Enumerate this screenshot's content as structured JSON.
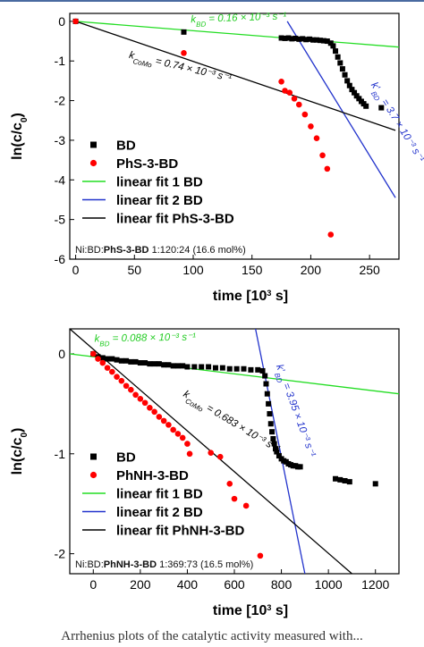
{
  "chart_data": [
    {
      "type": "scatter",
      "xlabel": "time [10³ s]",
      "ylabel": "ln(c/c₀)",
      "xlim": [
        -5,
        275
      ],
      "ylim": [
        -6,
        0.2
      ],
      "xticks": [
        0,
        50,
        100,
        150,
        200,
        250
      ],
      "yticks": [
        0,
        -1,
        -2,
        -3,
        -4,
        -5,
        -6
      ],
      "legend_position": "bottom-left",
      "legend": [
        {
          "label": "BD",
          "kind": "square",
          "color": "#000000"
        },
        {
          "label": "PhS-3-BD",
          "kind": "circle",
          "color": "#ff0000"
        },
        {
          "label": "linear fit 1 BD",
          "kind": "line",
          "color": "#22dd22"
        },
        {
          "label": "linear fit 2 BD",
          "kind": "line",
          "color": "#2233cc"
        },
        {
          "label": "linear fit PhS-3-BD",
          "kind": "line",
          "color": "#000000"
        }
      ],
      "footnote": {
        "prefix": "Ni:BD:",
        "bold": "PhS-3-BD",
        "suffix": " 1:120:24 (16.6 mol%)"
      },
      "series": [
        {
          "name": "BD",
          "marker": "square",
          "color": "#000000",
          "x": [
            0,
            92,
            175,
            178,
            181,
            184,
            187,
            190,
            193,
            196,
            199,
            202,
            205,
            208,
            211,
            214,
            217,
            219,
            221,
            223,
            225,
            227,
            229,
            231,
            233,
            235,
            237,
            239,
            241,
            243,
            245,
            247,
            260
          ],
          "y": [
            0,
            -0.27,
            -0.42,
            -0.43,
            -0.42,
            -0.44,
            -0.43,
            -0.45,
            -0.44,
            -0.46,
            -0.45,
            -0.47,
            -0.47,
            -0.48,
            -0.49,
            -0.5,
            -0.55,
            -0.62,
            -0.75,
            -0.9,
            -1.05,
            -1.2,
            -1.35,
            -1.5,
            -1.62,
            -1.72,
            -1.8,
            -1.88,
            -1.95,
            -2.02,
            -2.08,
            -2.14,
            -2.18
          ]
        },
        {
          "name": "PhS-3-BD",
          "marker": "circle",
          "color": "#ff0000",
          "x": [
            0,
            92,
            175,
            178,
            182,
            186,
            190,
            195,
            200,
            205,
            210,
            214,
            217
          ],
          "y": [
            0,
            -0.8,
            -1.52,
            -1.75,
            -1.8,
            -1.95,
            -2.1,
            -2.35,
            -2.65,
            -2.95,
            -3.38,
            -3.72,
            -5.38
          ]
        }
      ],
      "fits": [
        {
          "name": "linear fit 1 BD",
          "color": "#22dd22",
          "x": [
            0,
            275
          ],
          "y": [
            0,
            -0.65
          ]
        },
        {
          "name": "linear fit 2 BD",
          "color": "#2233cc",
          "x": [
            180,
            272
          ],
          "y": [
            0,
            -4.45
          ]
        },
        {
          "name": "linear fit PhS-3-BD",
          "color": "#000000",
          "x": [
            0,
            272
          ],
          "y": [
            0,
            -2.75
          ]
        }
      ],
      "annotations": [
        {
          "text": "k_BD = 0.16 × 10⁻³ s⁻¹",
          "color": "#22cc22",
          "at": [
            98,
            -0.03
          ],
          "rotate": -2
        },
        {
          "text": "k_CoMo = 0.74 × 10⁻³ s⁻¹",
          "color": "#000000",
          "at": [
            45,
            -0.92
          ],
          "rotate": 13
        },
        {
          "text": "k'_BD = 3.7 × 10⁻³ s⁻¹",
          "color": "#2233cc",
          "at": [
            251,
            -1.6
          ],
          "rotate": 58
        }
      ]
    },
    {
      "type": "scatter",
      "xlabel": "time [10³ s]",
      "ylabel": "ln(c/c₀)",
      "xlim": [
        -100,
        1300
      ],
      "ylim": [
        -2.2,
        0.25
      ],
      "xticks": [
        0,
        200,
        400,
        600,
        800,
        1000,
        1200
      ],
      "yticks": [
        0,
        -1,
        -2
      ],
      "legend_position": "bottom-left",
      "legend": [
        {
          "label": "BD",
          "kind": "square",
          "color": "#000000"
        },
        {
          "label": "PhNH-3-BD",
          "kind": "circle",
          "color": "#ff0000"
        },
        {
          "label": "linear fit 1 BD",
          "kind": "line",
          "color": "#22dd22"
        },
        {
          "label": "linear fit 2 BD",
          "kind": "line",
          "color": "#2233cc"
        },
        {
          "label": "linear fit PhNH-3-BD",
          "kind": "line",
          "color": "#000000"
        }
      ],
      "footnote": {
        "prefix": "Ni:BD:",
        "bold": "PhNH-3-BD",
        "suffix": " 1:369:73 (16.5 mol%)"
      },
      "series": [
        {
          "name": "BD",
          "marker": "square",
          "color": "#000000",
          "x": [
            0,
            20,
            40,
            60,
            80,
            100,
            120,
            140,
            160,
            180,
            200,
            220,
            240,
            260,
            280,
            300,
            320,
            340,
            360,
            380,
            400,
            430,
            460,
            490,
            520,
            550,
            580,
            610,
            640,
            670,
            700,
            720,
            730,
            735,
            740,
            745,
            750,
            755,
            760,
            765,
            770,
            775,
            780,
            790,
            800,
            810,
            820,
            830,
            840,
            850,
            860,
            870,
            880,
            1030,
            1050,
            1070,
            1090,
            1200
          ],
          "y": [
            0,
            -0.03,
            -0.04,
            -0.05,
            -0.05,
            -0.06,
            -0.07,
            -0.07,
            -0.08,
            -0.08,
            -0.09,
            -0.09,
            -0.1,
            -0.1,
            -0.1,
            -0.11,
            -0.11,
            -0.12,
            -0.12,
            -0.12,
            -0.13,
            -0.13,
            -0.13,
            -0.13,
            -0.14,
            -0.14,
            -0.15,
            -0.15,
            -0.15,
            -0.16,
            -0.16,
            -0.17,
            -0.22,
            -0.3,
            -0.4,
            -0.5,
            -0.6,
            -0.7,
            -0.78,
            -0.85,
            -0.9,
            -0.95,
            -0.98,
            -1.02,
            -1.05,
            -1.07,
            -1.08,
            -1.1,
            -1.11,
            -1.12,
            -1.12,
            -1.13,
            -1.13,
            -1.25,
            -1.26,
            -1.27,
            -1.28,
            -1.3
          ]
        },
        {
          "name": "PhNH-3-BD",
          "marker": "circle",
          "color": "#ff0000",
          "x": [
            0,
            20,
            40,
            60,
            80,
            100,
            120,
            140,
            160,
            180,
            200,
            220,
            240,
            260,
            280,
            300,
            320,
            340,
            360,
            380,
            400,
            410,
            500,
            540,
            580,
            600,
            650,
            710
          ],
          "y": [
            0,
            -0.05,
            -0.09,
            -0.14,
            -0.18,
            -0.23,
            -0.27,
            -0.32,
            -0.36,
            -0.41,
            -0.45,
            -0.49,
            -0.54,
            -0.58,
            -0.63,
            -0.67,
            -0.71,
            -0.76,
            -0.8,
            -0.84,
            -0.9,
            -1.0,
            -0.99,
            -1.03,
            -1.3,
            -1.45,
            -1.52,
            -2.02
          ]
        }
      ],
      "fits": [
        {
          "name": "linear fit 1 BD",
          "color": "#22dd22",
          "x": [
            -100,
            1300
          ],
          "y": [
            0,
            -0.4
          ]
        },
        {
          "name": "linear fit 2 BD",
          "color": "#2233cc",
          "x": [
            690,
            900
          ],
          "y": [
            0.25,
            -2.2
          ]
        },
        {
          "name": "linear fit PhNH-3-BD",
          "color": "#000000",
          "x": [
            -100,
            1100
          ],
          "y": [
            0.25,
            -2.2
          ]
        }
      ],
      "annotations": [
        {
          "text": "k_BD = 0.088 × 10⁻³ s⁻¹",
          "color": "#22cc22",
          "at": [
            5,
            0.12
          ],
          "rotate": -1
        },
        {
          "text": "k_CoMo = 0.683 × 10⁻³ s⁻¹",
          "color": "#000000",
          "at": [
            380,
            -0.42
          ],
          "rotate": 31
        },
        {
          "text": "k'_BD = 3.95 × 10⁻³ s⁻¹",
          "color": "#2233cc",
          "at": [
            778,
            -0.12
          ],
          "rotate": 70
        }
      ]
    }
  ],
  "caption": "Arrhenius plots of the catalytic activity measured with..."
}
